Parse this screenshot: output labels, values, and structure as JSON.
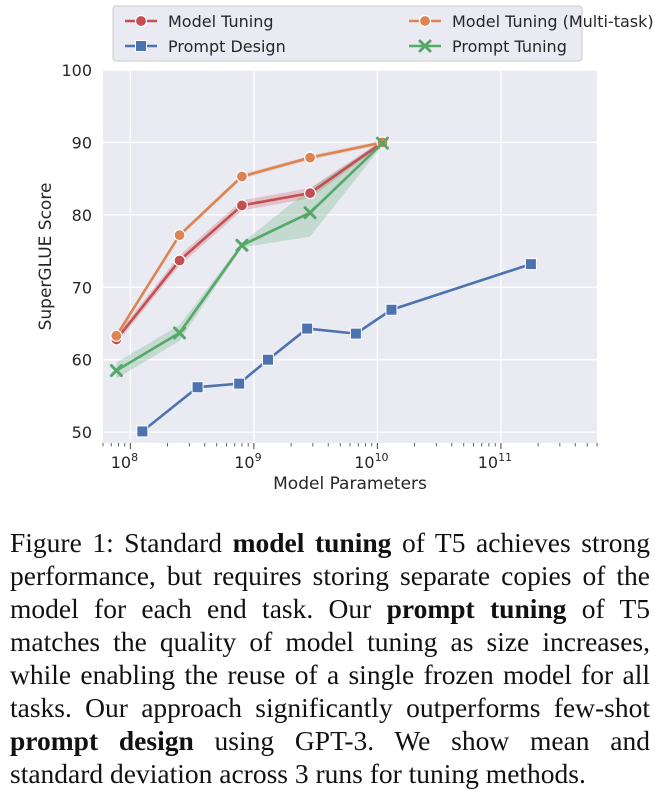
{
  "chart_data": {
    "type": "line",
    "x_scale": "log",
    "xlabel": "Model Parameters",
    "ylabel": "SuperGLUE Score",
    "xlim": [
      60000000,
      600000000000
    ],
    "ylim": [
      48.5,
      100
    ],
    "y_ticks": [
      "50",
      "60",
      "70",
      "80",
      "90",
      "100"
    ],
    "x_ticks": [
      {
        "value": 100000000,
        "base": "10",
        "exp": "8"
      },
      {
        "value": 1000000000,
        "base": "10",
        "exp": "9"
      },
      {
        "value": 10000000000,
        "base": "10",
        "exp": "10"
      },
      {
        "value": 100000000000,
        "base": "10",
        "exp": "11"
      }
    ],
    "grid": true,
    "background": "#eaeaf2",
    "legend_position": "top-center",
    "series": [
      {
        "name": "Model Tuning",
        "color": "#c44e52",
        "marker": "circle",
        "points": [
          [
            77000000,
            62.8
          ],
          [
            250000000,
            73.7
          ],
          [
            800000000,
            81.3
          ],
          [
            2850000000,
            83.0
          ],
          [
            11000000000,
            90.0
          ]
        ],
        "lower": [
          62.2,
          73.0,
          80.6,
          82.3,
          89.7
        ],
        "upper": [
          63.4,
          74.4,
          82.0,
          83.7,
          90.3
        ]
      },
      {
        "name": "Model Tuning (Multi-task)",
        "color": "#dd8452",
        "marker": "circle",
        "points": [
          [
            77000000,
            63.3
          ],
          [
            250000000,
            77.2
          ],
          [
            800000000,
            85.3
          ],
          [
            2850000000,
            87.9
          ],
          [
            11000000000,
            90.0
          ]
        ],
        "lower": [
          63.0,
          76.9,
          85.0,
          87.6,
          89.7
        ],
        "upper": [
          63.6,
          77.5,
          85.6,
          88.2,
          90.3
        ]
      },
      {
        "name": "Prompt Design",
        "color": "#4c72b0",
        "marker": "square",
        "points": [
          [
            125000000,
            50.1
          ],
          [
            350000000,
            56.2
          ],
          [
            760000000,
            56.7
          ],
          [
            1300000000,
            60.0
          ],
          [
            2700000000,
            64.3
          ],
          [
            6700000000,
            63.6
          ],
          [
            13000000000,
            66.9
          ],
          [
            175000000000,
            73.2
          ]
        ]
      },
      {
        "name": "Prompt Tuning",
        "color": "#55a868",
        "marker": "x",
        "points": [
          [
            77000000,
            58.5
          ],
          [
            250000000,
            63.7
          ],
          [
            800000000,
            75.8
          ],
          [
            2850000000,
            80.3
          ],
          [
            11000000000,
            89.9
          ]
        ],
        "lower": [
          57.4,
          62.6,
          75.5,
          77.0,
          89.6
        ],
        "upper": [
          59.6,
          64.8,
          76.1,
          83.6,
          90.2
        ]
      }
    ]
  },
  "caption": {
    "label": "Figure 1:",
    "t1": " Standard ",
    "b1": "model tuning",
    "t2": " of T5 achieves strong performance, but requires storing separate copies of the model for each end task. Our ",
    "b2": "prompt tuning",
    "t3": " of T5 matches the quality of model tuning as size increases, while enabling the reuse of a single frozen model for all tasks. Our approach significantly outperforms few-shot ",
    "b3": "prompt design",
    "t4": " using GPT-3. We show mean and standard deviation across 3 runs for tuning methods."
  }
}
